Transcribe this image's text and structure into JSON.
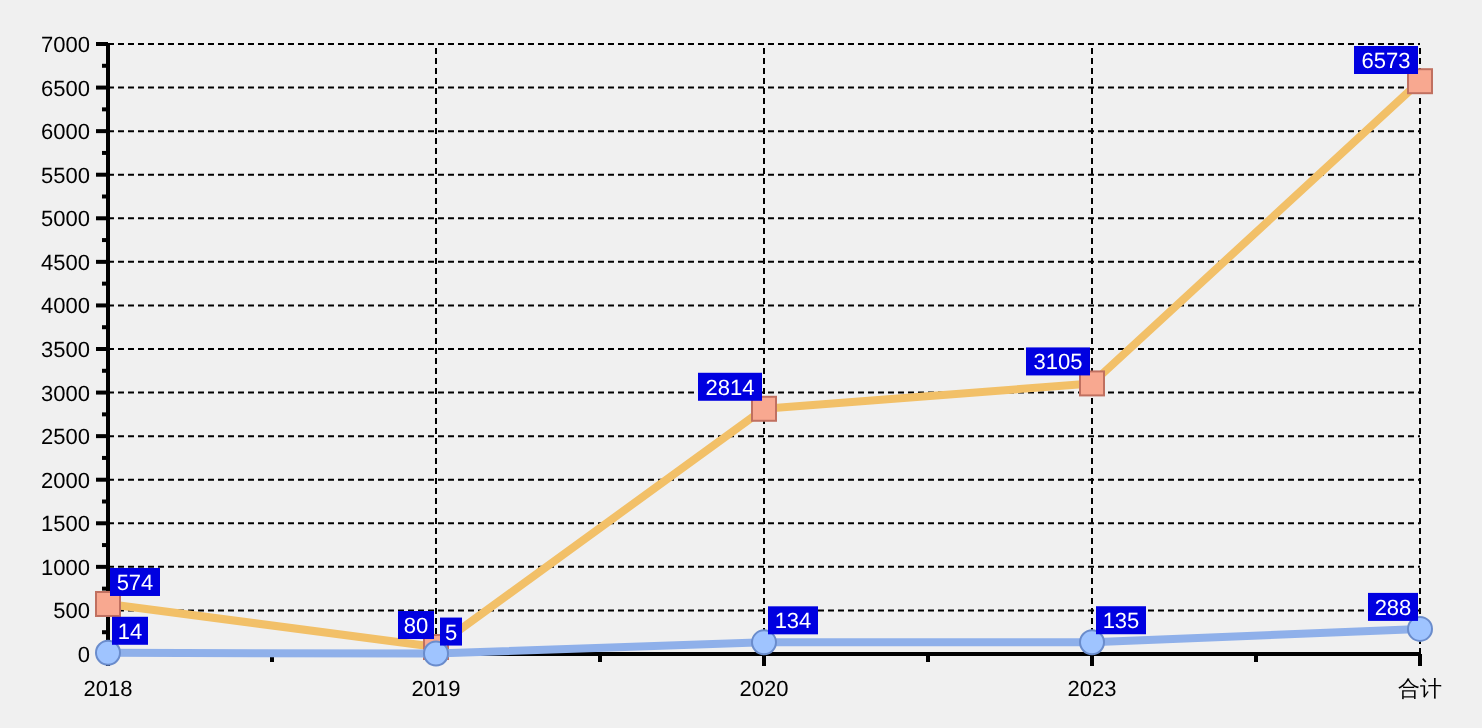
{
  "chart_data": {
    "type": "line",
    "categories": [
      "2018",
      "2019",
      "2020",
      "2023",
      "合计"
    ],
    "series": [
      {
        "color": "#f2c068",
        "values": [
          574,
          80,
          2814,
          3105,
          6573
        ],
        "marker": "square"
      },
      {
        "color": "#8fb0ea",
        "values": [
          14,
          5,
          134,
          135,
          288
        ],
        "marker": "circle"
      }
    ],
    "ylim": [
      0,
      7000
    ],
    "yticks": [
      0,
      500,
      1000,
      1500,
      2000,
      2500,
      3000,
      3500,
      4000,
      4500,
      5000,
      5500,
      6000,
      6500,
      7000
    ],
    "grid": true,
    "data_labels": true
  }
}
